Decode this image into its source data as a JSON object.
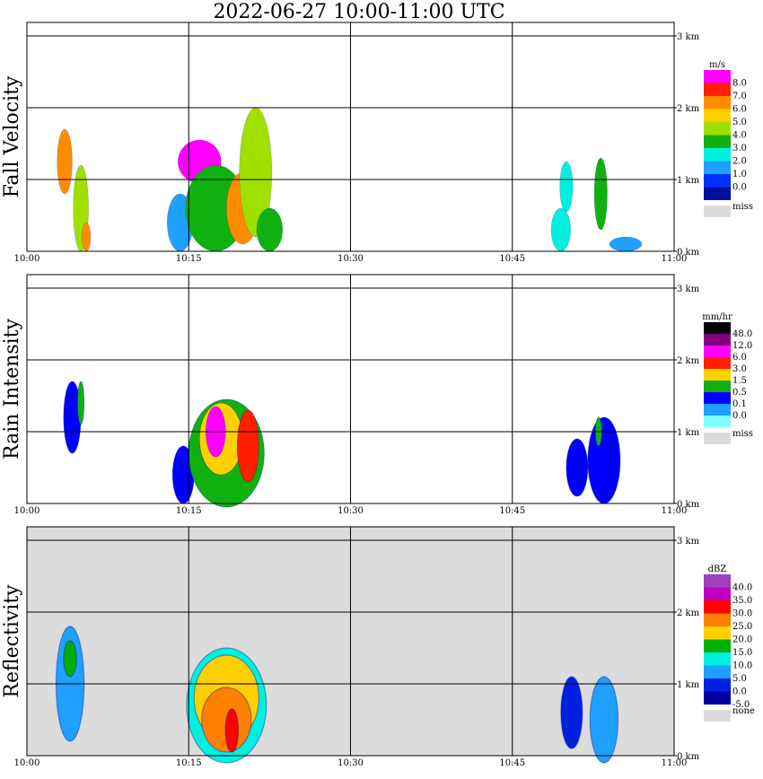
{
  "title": "2022-06-27  10:00-11:00 UTC",
  "chart_data": [
    {
      "type": "heatmap",
      "ylabel": "Fall Velocity",
      "xlabel": "",
      "x_ticks": [
        "10:00",
        "10:15",
        "10:30",
        "10:45",
        "11:00"
      ],
      "y_ticks": [
        "0 km",
        "1 km",
        "2 km",
        "3 km"
      ],
      "xlim": [
        0,
        60
      ],
      "ylim": [
        0,
        3.0
      ],
      "grid": true,
      "legend_placement": "right",
      "legend": {
        "unit": "m/s",
        "levels": [
          "8.0",
          "7.0",
          "6.0",
          "5.0",
          "4.0",
          "3.0",
          "2.0",
          "1.0",
          "0.0"
        ],
        "colors": [
          "#ff00ff",
          "#ff2000",
          "#ff8c00",
          "#ffd000",
          "#a0e000",
          "#10b010",
          "#00f0e0",
          "#20a0ff",
          "#0030ff",
          "#0010a0"
        ],
        "missing_label": "miss",
        "missing_color": "#dcdcdc"
      },
      "background": "#ffffff",
      "blobs": [
        {
          "x": 3.5,
          "y": 1.25,
          "rx": 0.7,
          "ry": 0.45,
          "value": 6.5
        },
        {
          "x": 5.0,
          "y": 0.6,
          "rx": 0.7,
          "ry": 0.6,
          "value": 4.5
        },
        {
          "x": 5.5,
          "y": 0.2,
          "rx": 0.4,
          "ry": 0.2,
          "value": 6.0
        },
        {
          "x": 14.2,
          "y": 0.4,
          "rx": 1.2,
          "ry": 0.4,
          "value": 1.5
        },
        {
          "x": 16.0,
          "y": 1.25,
          "rx": 2.0,
          "ry": 0.3,
          "value": 8.0
        },
        {
          "x": 17.5,
          "y": 0.6,
          "rx": 2.8,
          "ry": 0.6,
          "value": 3.5
        },
        {
          "x": 20.0,
          "y": 0.6,
          "rx": 1.5,
          "ry": 0.5,
          "value": 6.0
        },
        {
          "x": 21.2,
          "y": 1.1,
          "rx": 1.5,
          "ry": 0.9,
          "value": 4.5
        },
        {
          "x": 22.5,
          "y": 0.3,
          "rx": 1.2,
          "ry": 0.3,
          "value": 3.5
        },
        {
          "x": 50.0,
          "y": 0.9,
          "rx": 0.6,
          "ry": 0.35,
          "value": 2.5
        },
        {
          "x": 49.5,
          "y": 0.3,
          "rx": 0.9,
          "ry": 0.3,
          "value": 2.0
        },
        {
          "x": 53.2,
          "y": 0.8,
          "rx": 0.6,
          "ry": 0.5,
          "value": 3.0
        },
        {
          "x": 55.5,
          "y": 0.1,
          "rx": 1.5,
          "ry": 0.1,
          "value": 1.0
        }
      ]
    },
    {
      "type": "heatmap",
      "ylabel": "Rain Intensity",
      "xlabel": "",
      "x_ticks": [
        "10:00",
        "10:15",
        "10:30",
        "10:45",
        "11:00"
      ],
      "y_ticks": [
        "0 km",
        "1 km",
        "2 km",
        "3 km"
      ],
      "xlim": [
        0,
        60
      ],
      "ylim": [
        0,
        3.0
      ],
      "grid": true,
      "legend_placement": "right",
      "legend": {
        "unit": "mm/hr",
        "levels": [
          "48.0",
          "12.0",
          "6.0",
          "3.0",
          "1.5",
          "0.5",
          "0.1",
          "0.0"
        ],
        "colors": [
          "#000000",
          "#800080",
          "#ff00ff",
          "#ff2000",
          "#ffd000",
          "#10b010",
          "#0000ff",
          "#20a0ff",
          "#80ffff"
        ],
        "missing_label": "miss",
        "missing_color": "#dcdcdc"
      },
      "background": "#ffffff",
      "blobs": [
        {
          "x": 4.2,
          "y": 1.2,
          "rx": 0.8,
          "ry": 0.5,
          "value": 0.1
        },
        {
          "x": 5.0,
          "y": 1.4,
          "rx": 0.3,
          "ry": 0.3,
          "value": 0.5
        },
        {
          "x": 14.5,
          "y": 0.4,
          "rx": 1.0,
          "ry": 0.4,
          "value": 0.1
        },
        {
          "x": 18.5,
          "y": 0.7,
          "rx": 3.5,
          "ry": 0.75,
          "value": 0.5
        },
        {
          "x": 18.0,
          "y": 0.9,
          "rx": 2.0,
          "ry": 0.5,
          "value": 1.5
        },
        {
          "x": 17.5,
          "y": 1.0,
          "rx": 0.9,
          "ry": 0.35,
          "value": 6.0
        },
        {
          "x": 20.5,
          "y": 0.8,
          "rx": 1.0,
          "ry": 0.5,
          "value": 3.0
        },
        {
          "x": 51.0,
          "y": 0.5,
          "rx": 1.0,
          "ry": 0.4,
          "value": 0.1
        },
        {
          "x": 53.5,
          "y": 0.6,
          "rx": 1.5,
          "ry": 0.6,
          "value": 0.1
        },
        {
          "x": 53.0,
          "y": 1.0,
          "rx": 0.3,
          "ry": 0.2,
          "value": 0.5
        }
      ]
    },
    {
      "type": "heatmap",
      "ylabel": "Reflectivity",
      "xlabel": "",
      "x_ticks": [
        "10:00",
        "10:15",
        "10:30",
        "10:45",
        "11:00"
      ],
      "y_ticks": [
        "0 km",
        "1 km",
        "2 km",
        "3 km"
      ],
      "xlim": [
        0,
        60
      ],
      "ylim": [
        0,
        3.0
      ],
      "grid": true,
      "legend_placement": "right",
      "legend": {
        "unit": "dBZ",
        "levels": [
          "40.0",
          "35.0",
          "30.0",
          "25.0",
          "20.0",
          "15.0",
          "10.0",
          "5.0",
          "0.0",
          "-5.0"
        ],
        "colors": [
          "#a040c0",
          "#c000c0",
          "#ff0000",
          "#ff8000",
          "#ffd000",
          "#00b000",
          "#00f0e0",
          "#20a0ff",
          "#0020e0",
          "#0000a0"
        ],
        "missing_label": "none",
        "missing_color": "#dcdcdc"
      },
      "background": "#dcdcdc",
      "blobs": [
        {
          "x": 4.0,
          "y": 1.0,
          "rx": 1.3,
          "ry": 0.8,
          "value": 5.0
        },
        {
          "x": 4.0,
          "y": 1.35,
          "rx": 0.6,
          "ry": 0.25,
          "value": 15.0
        },
        {
          "x": 18.5,
          "y": 0.7,
          "rx": 3.7,
          "ry": 0.8,
          "value": 10.0
        },
        {
          "x": 18.5,
          "y": 0.8,
          "rx": 3.0,
          "ry": 0.6,
          "value": 20.0
        },
        {
          "x": 18.5,
          "y": 0.5,
          "rx": 2.3,
          "ry": 0.45,
          "value": 25.0
        },
        {
          "x": 19.0,
          "y": 0.35,
          "rx": 0.6,
          "ry": 0.3,
          "value": 30.0
        },
        {
          "x": 50.5,
          "y": 0.6,
          "rx": 1.0,
          "ry": 0.5,
          "value": 0.0
        },
        {
          "x": 53.5,
          "y": 0.5,
          "rx": 1.3,
          "ry": 0.6,
          "value": 5.0
        }
      ]
    }
  ]
}
